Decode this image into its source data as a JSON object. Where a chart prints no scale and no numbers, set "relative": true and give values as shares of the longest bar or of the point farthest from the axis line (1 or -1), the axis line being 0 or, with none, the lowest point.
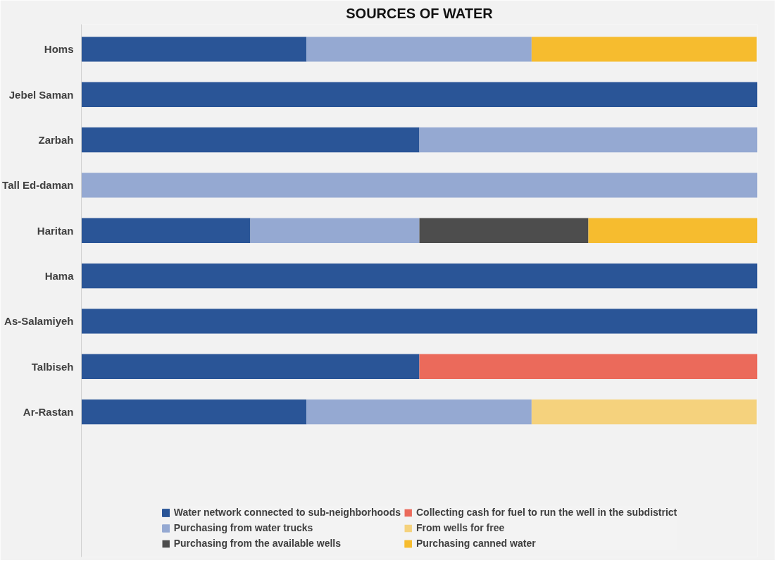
{
  "chart_data": {
    "type": "bar",
    "orientation": "horizontal",
    "stacked": true,
    "relative": true,
    "title": "SOURCES OF WATER",
    "categories": [
      "Homs",
      "Jebel Saman",
      "Zarbah",
      "Tall Ed-daman",
      "Haritan",
      "Hama",
      "As-Salamiyeh",
      "Talbiseh",
      "Ar-Rastan"
    ],
    "series": [
      {
        "name": "Water network connected to sub-neighborhoods",
        "color": "#2a5597",
        "values": [
          0.333,
          1,
          0.5,
          0,
          0.25,
          1,
          1,
          0.5,
          0.333
        ]
      },
      {
        "name": "Collecting cash for fuel to run the well in the subdistrict",
        "color": "#eb6a5b",
        "values": [
          0,
          0,
          0,
          0,
          0,
          0,
          0,
          0.5,
          0
        ]
      },
      {
        "name": "Purchasing from water trucks",
        "color": "#95a9d2",
        "values": [
          0.333,
          0,
          0.5,
          1,
          0.25,
          0,
          0,
          0,
          0.333
        ]
      },
      {
        "name": "From wells for free",
        "color": "#f5d27d",
        "values": [
          0,
          0,
          0,
          0,
          0,
          0,
          0,
          0,
          0.333
        ]
      },
      {
        "name": "Purchasing from the available wells",
        "color": "#4d4d4d",
        "values": [
          0,
          0,
          0,
          0,
          0.25,
          0,
          0,
          0,
          0
        ]
      },
      {
        "name": "Purchasing canned water",
        "color": "#f6bc2f",
        "values": [
          0.333,
          0,
          0,
          0,
          0.25,
          0,
          0,
          0,
          0
        ]
      }
    ],
    "legend": "bottom"
  }
}
